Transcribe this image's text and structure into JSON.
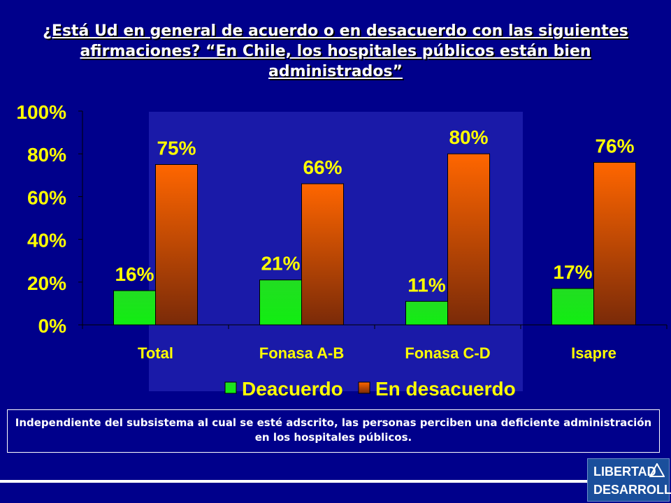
{
  "title": "¿Está Ud en general de acuerdo o en desacuerdo con las siguientes afirmaciones? “En Chile, los hospitales públicos están bien administrados”",
  "note": "Independiente del subsistema al cual se esté adscrito, las personas perciben una deficiente administración en los hospitales públicos.",
  "logo": {
    "line1": "LIBERTAD",
    "line2": "DESARROLLO"
  },
  "colors": {
    "background": "#00008b",
    "series1": "#22dd22",
    "series2": "#e86a10"
  },
  "chart_data": {
    "type": "bar",
    "categories": [
      "Total",
      "Fonasa A-B",
      "Fonasa C-D",
      "Isapre"
    ],
    "series": [
      {
        "name": "Deacuerdo",
        "values": [
          16,
          21,
          11,
          17
        ],
        "labels": [
          "16%",
          "21%",
          "11%",
          "17%"
        ]
      },
      {
        "name": "En desacuerdo",
        "values": [
          75,
          66,
          80,
          76
        ],
        "labels": [
          "75%",
          "66%",
          "80%",
          "76%"
        ]
      }
    ],
    "yticks": [
      "0%",
      "20%",
      "40%",
      "60%",
      "80%",
      "100%"
    ],
    "ylim": [
      0,
      100
    ],
    "legend_position": "bottom"
  }
}
